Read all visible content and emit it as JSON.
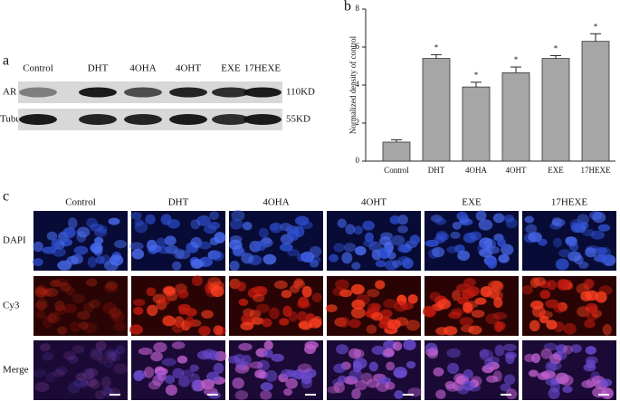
{
  "blot": {
    "label": "a",
    "columns": [
      "Control",
      "DHT",
      "4OHA",
      "4OHT",
      "EXE",
      "17HEXE"
    ],
    "rows": [
      {
        "label": "AR",
        "size": "110KD"
      },
      {
        "label": "Tubulin",
        "size": "55KD"
      }
    ]
  },
  "chart_data": {
    "type": "bar",
    "panel_label": "b",
    "ylabel": "Normalized density of control",
    "categories": [
      "Control",
      "DHT",
      "4OHA",
      "4OHT",
      "EXE",
      "17HEXE"
    ],
    "values": [
      1.0,
      5.4,
      3.9,
      4.65,
      5.4,
      6.3
    ],
    "errors": [
      0.12,
      0.2,
      0.25,
      0.3,
      0.15,
      0.4
    ],
    "annotations": [
      null,
      "*",
      "*",
      "*",
      "*",
      "*"
    ],
    "color": "#a6a6a6",
    "ylim": [
      0,
      8
    ],
    "yticks": [
      0,
      2,
      4,
      6,
      8
    ]
  },
  "images": {
    "label": "c",
    "columns": [
      "Control",
      "DHT",
      "4OHA",
      "4OHT",
      "EXE",
      "17HEXE"
    ],
    "rows": [
      "DAPI",
      "Cy3",
      "Merge"
    ]
  }
}
